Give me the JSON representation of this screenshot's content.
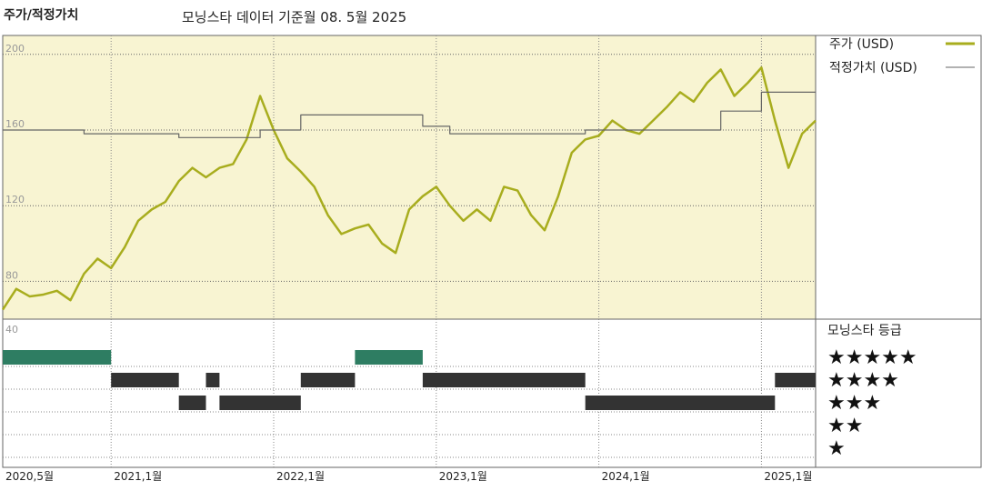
{
  "header": {
    "title": "주가/적정가치",
    "subtitle": "모닝스타 데이터 기준월 08. 5월 2025"
  },
  "colors": {
    "price": "#a8ad1e",
    "fair_value": "#666666",
    "plot_bg": "#f8f4d2",
    "rating_5": "#2e7d62",
    "rating_other": "#333333"
  },
  "legend": {
    "price_label": "주가 (USD)",
    "fair_value_label": "적정가치 (USD)",
    "rating_title": "모닝스타 등급",
    "star_labels": [
      "★★★★★",
      "★★★★",
      "★★★",
      "★★",
      "★"
    ]
  },
  "chart_data": {
    "type": "line",
    "title": "주가/적정가치",
    "ylim": [
      60,
      210
    ],
    "y_ticks": [
      "200",
      "160",
      "120",
      "80"
    ],
    "rating_axis_label": "40",
    "x_ticks": [
      "2020,5월",
      "2021,1월",
      "2022,1월",
      "2023,1월",
      "2024,1월",
      "2025,1월"
    ],
    "x_tick_dates": [
      "2020-05",
      "2021-01",
      "2022-01",
      "2023-01",
      "2024-01",
      "2025-01"
    ],
    "x_range": [
      "2020-05",
      "2025-05"
    ],
    "grid": true,
    "legend_position": "right",
    "series": [
      {
        "name": "주가 (USD)",
        "points": [
          [
            "2020-05",
            65
          ],
          [
            "2020-06",
            76
          ],
          [
            "2020-07",
            72
          ],
          [
            "2020-08",
            73
          ],
          [
            "2020-09",
            75
          ],
          [
            "2020-10",
            70
          ],
          [
            "2020-11",
            84
          ],
          [
            "2020-12",
            92
          ],
          [
            "2021-01",
            87
          ],
          [
            "2021-02",
            98
          ],
          [
            "2021-03",
            112
          ],
          [
            "2021-04",
            118
          ],
          [
            "2021-05",
            122
          ],
          [
            "2021-06",
            133
          ],
          [
            "2021-07",
            140
          ],
          [
            "2021-08",
            135
          ],
          [
            "2021-09",
            140
          ],
          [
            "2021-10",
            142
          ],
          [
            "2021-11",
            155
          ],
          [
            "2021-12",
            178
          ],
          [
            "2022-01",
            160
          ],
          [
            "2022-02",
            145
          ],
          [
            "2022-03",
            138
          ],
          [
            "2022-04",
            130
          ],
          [
            "2022-05",
            115
          ],
          [
            "2022-06",
            105
          ],
          [
            "2022-07",
            108
          ],
          [
            "2022-08",
            110
          ],
          [
            "2022-09",
            100
          ],
          [
            "2022-10",
            95
          ],
          [
            "2022-11",
            118
          ],
          [
            "2022-12",
            125
          ],
          [
            "2023-01",
            130
          ],
          [
            "2023-02",
            120
          ],
          [
            "2023-03",
            112
          ],
          [
            "2023-04",
            118
          ],
          [
            "2023-05",
            112
          ],
          [
            "2023-06",
            130
          ],
          [
            "2023-07",
            128
          ],
          [
            "2023-08",
            115
          ],
          [
            "2023-09",
            107
          ],
          [
            "2023-10",
            125
          ],
          [
            "2023-11",
            148
          ],
          [
            "2023-12",
            155
          ],
          [
            "2024-01",
            157
          ],
          [
            "2024-02",
            165
          ],
          [
            "2024-03",
            160
          ],
          [
            "2024-04",
            158
          ],
          [
            "2024-05",
            165
          ],
          [
            "2024-06",
            172
          ],
          [
            "2024-07",
            180
          ],
          [
            "2024-08",
            175
          ],
          [
            "2024-09",
            185
          ],
          [
            "2024-10",
            192
          ],
          [
            "2024-11",
            178
          ],
          [
            "2024-12",
            185
          ],
          [
            "2025-01",
            193
          ],
          [
            "2025-02",
            165
          ],
          [
            "2025-03",
            140
          ],
          [
            "2025-04",
            158
          ],
          [
            "2025-05",
            165
          ]
        ]
      },
      {
        "name": "적정가치 (USD)",
        "step": true,
        "points": [
          [
            "2020-05",
            160
          ],
          [
            "2020-11",
            158
          ],
          [
            "2021-06",
            156
          ],
          [
            "2021-12",
            160
          ],
          [
            "2022-03",
            168
          ],
          [
            "2022-12",
            162
          ],
          [
            "2023-02",
            158
          ],
          [
            "2023-12",
            160
          ],
          [
            "2024-06",
            160
          ],
          [
            "2024-10",
            170
          ],
          [
            "2025-01",
            180
          ],
          [
            "2025-05",
            180
          ]
        ]
      }
    ],
    "star_ratings": [
      {
        "stars": 5,
        "start": "2020-05",
        "end": "2021-01"
      },
      {
        "stars": 4,
        "start": "2021-01",
        "end": "2021-06"
      },
      {
        "stars": 3,
        "start": "2021-06",
        "end": "2021-08"
      },
      {
        "stars": 4,
        "start": "2021-08",
        "end": "2021-09"
      },
      {
        "stars": 3,
        "start": "2021-09",
        "end": "2022-03"
      },
      {
        "stars": 4,
        "start": "2022-03",
        "end": "2022-07"
      },
      {
        "stars": 5,
        "start": "2022-07",
        "end": "2022-12"
      },
      {
        "stars": 4,
        "start": "2022-12",
        "end": "2023-12"
      },
      {
        "stars": 3,
        "start": "2023-12",
        "end": "2025-02"
      },
      {
        "stars": 4,
        "start": "2025-02",
        "end": "2025-05"
      }
    ]
  }
}
